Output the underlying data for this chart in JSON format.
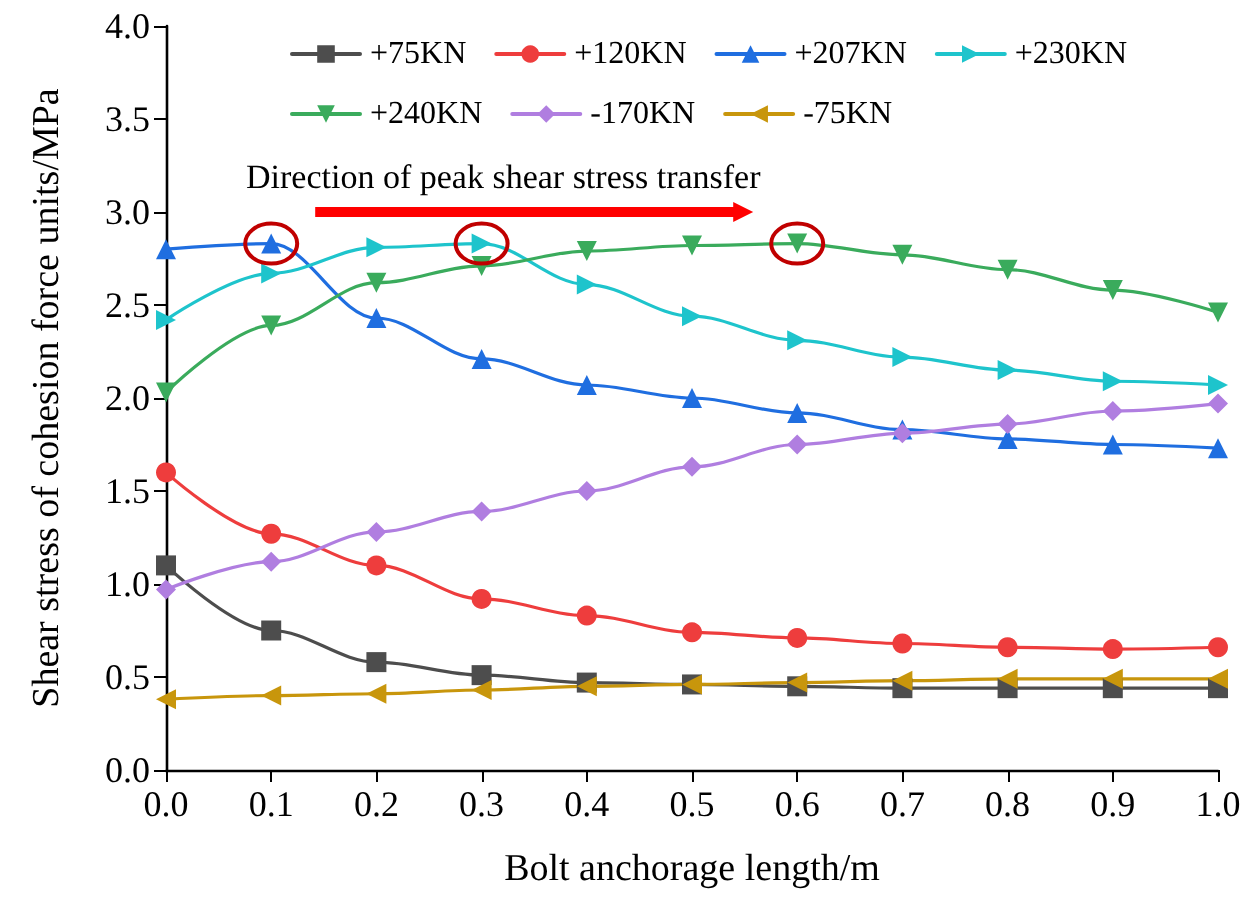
{
  "chart_data": {
    "type": "line",
    "xlabel": "Bolt anchorage length/m",
    "ylabel": "Shear stress of cohesion force units/MPa",
    "annotations": [
      "Direction of peak shear stress transfer"
    ],
    "x": [
      0.0,
      0.1,
      0.2,
      0.3,
      0.4,
      0.5,
      0.6,
      0.7,
      0.8,
      0.9,
      1.0
    ],
    "series": [
      {
        "name": "+75KN",
        "color": "#4d4d4d",
        "marker": "square",
        "values": [
          1.1,
          0.75,
          0.58,
          0.51,
          0.47,
          0.46,
          0.45,
          0.44,
          0.44,
          0.44,
          0.44
        ]
      },
      {
        "name": "+120KN",
        "color": "#ee3d3d",
        "marker": "circle",
        "values": [
          1.6,
          1.27,
          1.1,
          0.92,
          0.83,
          0.74,
          0.71,
          0.68,
          0.66,
          0.65,
          0.66
        ]
      },
      {
        "name": "+207KN",
        "color": "#1f6ee0",
        "marker": "triangle",
        "values": [
          2.8,
          2.83,
          2.43,
          2.21,
          2.07,
          2.0,
          1.92,
          1.83,
          1.78,
          1.75,
          1.73
        ]
      },
      {
        "name": "+230KN",
        "color": "#1ec4cc",
        "marker": "triangle-right",
        "values": [
          2.42,
          2.67,
          2.81,
          2.83,
          2.61,
          2.44,
          2.31,
          2.22,
          2.15,
          2.09,
          2.07
        ]
      },
      {
        "name": "+240KN",
        "color": "#3aab5c",
        "marker": "triangle-down",
        "values": [
          2.03,
          2.39,
          2.62,
          2.71,
          2.79,
          2.82,
          2.83,
          2.77,
          2.69,
          2.58,
          2.46
        ]
      },
      {
        "name": "-170KN",
        "color": "#b07ee0",
        "marker": "diamond",
        "values": [
          0.97,
          1.12,
          1.28,
          1.39,
          1.5,
          1.63,
          1.75,
          1.81,
          1.86,
          1.93,
          1.97
        ]
      },
      {
        "name": "-75KN",
        "color": "#c8960c",
        "marker": "triangle-left",
        "values": [
          0.38,
          0.4,
          0.41,
          0.43,
          0.45,
          0.46,
          0.47,
          0.48,
          0.49,
          0.49,
          0.49
        ]
      }
    ],
    "xlim": [
      0.0,
      1.0
    ],
    "xticks": [
      {
        "value": 0,
        "label": "0.0"
      },
      {
        "value": 0.1,
        "label": "0.1"
      },
      {
        "value": 0.2,
        "label": "0.2"
      },
      {
        "value": 0.3,
        "label": "0.3"
      },
      {
        "value": 0.4,
        "label": "0.4"
      },
      {
        "value": 0.5,
        "label": "0.5"
      },
      {
        "value": 0.6,
        "label": "0.6"
      },
      {
        "value": 0.7,
        "label": "0.7"
      },
      {
        "value": 0.8,
        "label": "0.8"
      },
      {
        "value": 0.9,
        "label": "0.9"
      },
      {
        "value": 1,
        "label": "1.0"
      }
    ],
    "ylim": [
      0.0,
      4.0
    ],
    "yticks": [
      {
        "value": 0,
        "label": "0.0"
      },
      {
        "value": 0.5,
        "label": "0.5"
      },
      {
        "value": 1,
        "label": "1.0"
      },
      {
        "value": 1.5,
        "label": "1.5"
      },
      {
        "value": 2,
        "label": "2.0"
      },
      {
        "value": 2.5,
        "label": "2.5"
      },
      {
        "value": 3,
        "label": "3.0"
      },
      {
        "value": 3.5,
        "label": "3.5"
      },
      {
        "value": 4,
        "label": "4.0"
      }
    ],
    "grid": false,
    "legend": "top",
    "line_style": "solid"
  }
}
